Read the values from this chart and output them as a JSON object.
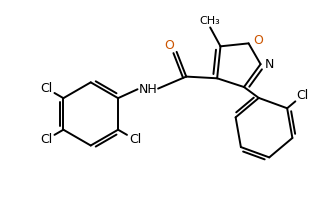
{
  "background": "#ffffff",
  "line_color": "#000000",
  "o_color": "#cc5500",
  "n_color": "#000000",
  "line_width": 1.4,
  "figsize": [
    3.29,
    2.21
  ],
  "dpi": 100,
  "xlim": [
    0,
    9.5
  ],
  "ylim": [
    0,
    6.4
  ]
}
